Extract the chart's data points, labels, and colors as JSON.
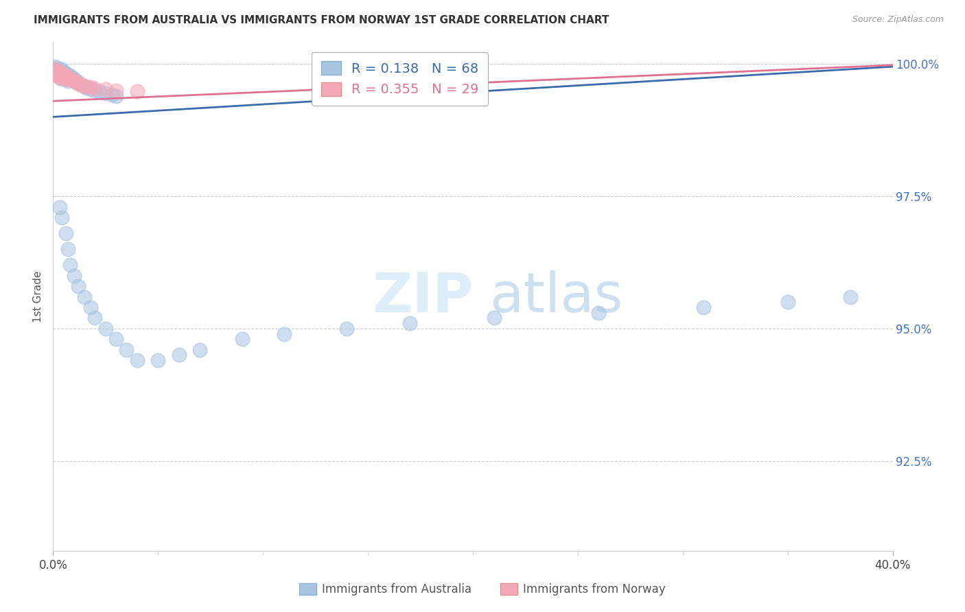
{
  "title": "IMMIGRANTS FROM AUSTRALIA VS IMMIGRANTS FROM NORWAY 1ST GRADE CORRELATION CHART",
  "source": "Source: ZipAtlas.com",
  "ylabel": "1st Grade",
  "ytick_labels": [
    "100.0%",
    "97.5%",
    "95.0%",
    "92.5%"
  ],
  "ytick_values": [
    1.0,
    0.975,
    0.95,
    0.925
  ],
  "xmin": 0.0,
  "xmax": 0.4,
  "ymin": 0.908,
  "ymax": 1.004,
  "legend_R_blue": "0.138",
  "legend_N_blue": "68",
  "legend_R_pink": "0.355",
  "legend_N_pink": "29",
  "aus_line_x0": 0.0,
  "aus_line_y0": 0.99,
  "aus_line_x1": 0.4,
  "aus_line_y1": 0.9995,
  "nor_line_x0": 0.0,
  "nor_line_y0": 0.993,
  "nor_line_x1": 0.4,
  "nor_line_y1": 0.9998,
  "aus_scatter_x": [
    0.001,
    0.001,
    0.001,
    0.002,
    0.002,
    0.002,
    0.002,
    0.003,
    0.003,
    0.003,
    0.003,
    0.004,
    0.004,
    0.004,
    0.004,
    0.005,
    0.005,
    0.005,
    0.006,
    0.006,
    0.006,
    0.007,
    0.007,
    0.007,
    0.008,
    0.008,
    0.009,
    0.009,
    0.01,
    0.01,
    0.011,
    0.012,
    0.013,
    0.014,
    0.015,
    0.016,
    0.018,
    0.02,
    0.022,
    0.025,
    0.028,
    0.03,
    0.003,
    0.004,
    0.006,
    0.007,
    0.008,
    0.01,
    0.012,
    0.015,
    0.018,
    0.02,
    0.025,
    0.03,
    0.035,
    0.04,
    0.05,
    0.06,
    0.07,
    0.09,
    0.11,
    0.14,
    0.17,
    0.21,
    0.26,
    0.31,
    0.35,
    0.38
  ],
  "aus_scatter_y": [
    0.9995,
    0.999,
    0.9985,
    0.9992,
    0.9988,
    0.9985,
    0.998,
    0.999,
    0.9985,
    0.998,
    0.9975,
    0.999,
    0.9985,
    0.9978,
    0.9972,
    0.9985,
    0.998,
    0.9975,
    0.9982,
    0.9978,
    0.9972,
    0.998,
    0.9975,
    0.9968,
    0.9978,
    0.9972,
    0.9975,
    0.997,
    0.9972,
    0.9968,
    0.9968,
    0.9965,
    0.9962,
    0.996,
    0.9958,
    0.9955,
    0.9952,
    0.995,
    0.9948,
    0.9945,
    0.9942,
    0.994,
    0.973,
    0.971,
    0.968,
    0.965,
    0.962,
    0.96,
    0.958,
    0.956,
    0.954,
    0.952,
    0.95,
    0.948,
    0.946,
    0.944,
    0.944,
    0.945,
    0.946,
    0.948,
    0.949,
    0.95,
    0.951,
    0.952,
    0.953,
    0.954,
    0.955,
    0.956
  ],
  "nor_scatter_x": [
    0.001,
    0.001,
    0.001,
    0.002,
    0.002,
    0.002,
    0.003,
    0.003,
    0.003,
    0.004,
    0.004,
    0.005,
    0.005,
    0.006,
    0.006,
    0.007,
    0.007,
    0.008,
    0.009,
    0.01,
    0.011,
    0.012,
    0.014,
    0.016,
    0.018,
    0.02,
    0.025,
    0.03,
    0.04
  ],
  "nor_scatter_y": [
    0.999,
    0.9985,
    0.998,
    0.9988,
    0.9983,
    0.9978,
    0.9985,
    0.998,
    0.9975,
    0.9982,
    0.9977,
    0.998,
    0.9975,
    0.9978,
    0.9972,
    0.9975,
    0.997,
    0.9972,
    0.997,
    0.9968,
    0.9965,
    0.9963,
    0.996,
    0.9958,
    0.9956,
    0.9954,
    0.9952,
    0.995,
    0.9948
  ],
  "color_australia": "#a8c4e0",
  "color_norway": "#f4a8b8",
  "color_line_australia": "#3a6baa",
  "color_line_norway": "#e07090",
  "color_yticks": "#4472c4",
  "background_color": "#ffffff"
}
